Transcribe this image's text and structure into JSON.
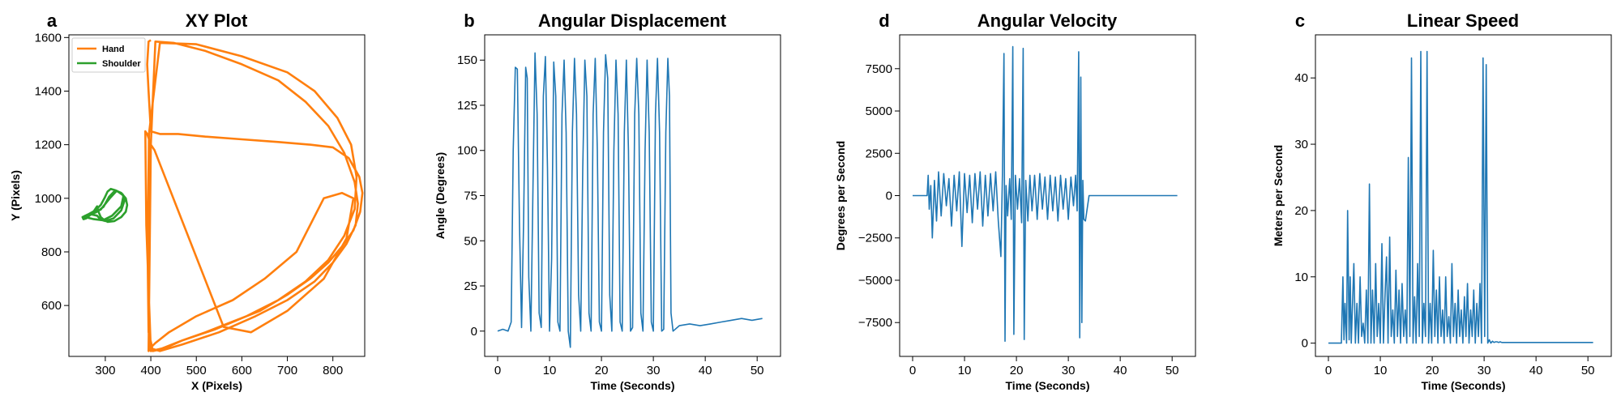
{
  "chart_data": [
    {
      "letter": "a",
      "type": "line",
      "title": "XY Plot",
      "xlabel": "X (Pixels)",
      "ylabel": "Y (Pixels)",
      "xlim": [
        220,
        870
      ],
      "ylim": [
        410,
        1610
      ],
      "xticks": [
        300,
        400,
        500,
        600,
        700,
        800
      ],
      "yticks": [
        600,
        800,
        1000,
        1200,
        1400,
        1600
      ],
      "grid": false,
      "legend": "top-left",
      "series": [
        {
          "name": "Hand",
          "color": "#ff7f0e",
          "x": [
            400,
            395,
            392,
            395,
            400,
            420,
            460,
            520,
            600,
            680,
            750,
            800,
            835,
            858,
            865,
            860,
            845,
            820,
            790,
            750,
            700,
            640,
            580,
            520,
            470,
            430,
            405,
            395,
            393,
            396,
            420,
            500,
            600,
            700,
            760,
            810,
            840,
            852,
            848,
            825,
            790,
            740,
            680,
            610,
            540,
            470,
            425,
            400,
            390,
            388,
            392,
            400,
            408,
            560,
            620,
            700,
            780,
            830,
            845,
            820,
            780,
            720,
            650,
            580,
            500,
            440,
            410,
            398,
            395,
            400,
            410,
            450,
            520,
            600,
            680,
            740,
            790,
            825,
            848,
            855,
            850,
            830,
            800,
            760,
            700,
            630,
            550,
            470,
            420,
            400
          ],
          "y": [
            1590,
            1585,
            1500,
            1400,
            1250,
            1240,
            1240,
            1230,
            1220,
            1210,
            1200,
            1190,
            1150,
            1080,
            1020,
            950,
            880,
            820,
            760,
            700,
            640,
            580,
            540,
            500,
            470,
            440,
            430,
            500,
            800,
            1240,
            1580,
            1575,
            1530,
            1470,
            1400,
            1300,
            1200,
            1080,
            960,
            860,
            770,
            690,
            620,
            560,
            510,
            470,
            440,
            430,
            900,
            1250,
            1240,
            1200,
            1180,
            520,
            500,
            580,
            700,
            850,
            1000,
            1020,
            1000,
            800,
            700,
            620,
            560,
            500,
            460,
            440,
            430,
            1200,
            1585,
            1580,
            1550,
            1500,
            1440,
            1360,
            1270,
            1170,
            1060,
            980,
            900,
            830,
            760,
            690,
            620,
            560,
            500,
            455,
            430,
            440
          ]
        },
        {
          "name": "Shoulder",
          "color": "#2ca02c",
          "x": [
            250,
            262,
            278,
            290,
            298,
            305,
            312,
            322,
            335,
            345,
            348,
            345,
            335,
            320,
            305,
            298,
            290,
            285,
            282,
            278,
            272,
            265,
            258,
            252,
            250,
            262,
            280,
            296,
            308,
            322,
            338,
            342,
            335,
            318,
            300,
            290,
            282,
            270,
            258,
            252,
            256,
            270,
            290,
            310,
            325,
            340,
            335,
            315,
            295,
            275,
            260,
            252
          ],
          "y": [
            930,
            940,
            955,
            975,
            1000,
            1025,
            1035,
            1030,
            1020,
            1000,
            975,
            950,
            930,
            915,
            912,
            918,
            930,
            950,
            970,
            960,
            945,
            935,
            925,
            922,
            930,
            938,
            948,
            968,
            1005,
            1030,
            1015,
            990,
            955,
            925,
            915,
            920,
            935,
            940,
            932,
            928,
            935,
            942,
            958,
            1000,
            1028,
            1010,
            970,
            935,
            918,
            922,
            928,
            932
          ]
        }
      ]
    },
    {
      "letter": "b",
      "type": "line",
      "title": "Angular Displacement",
      "xlabel": "Time (Seconds)",
      "ylabel": "Angle (Degrees)",
      "xlim": [
        -2.5,
        54.5
      ],
      "ylim": [
        -14,
        164
      ],
      "xticks": [
        0,
        10,
        20,
        30,
        40,
        50
      ],
      "yticks": [
        0,
        25,
        50,
        75,
        100,
        125,
        150
      ],
      "grid": false,
      "series": [
        {
          "name": "",
          "color": "#1f77b4",
          "x": [
            0,
            1,
            2,
            2.6,
            3.0,
            3.4,
            3.8,
            4.2,
            4.6,
            5.0,
            5.4,
            5.7,
            6.0,
            6.4,
            6.8,
            7.2,
            7.6,
            8.0,
            8.4,
            8.8,
            9.2,
            9.6,
            10.0,
            10.4,
            10.8,
            11.2,
            11.6,
            12.0,
            12.4,
            12.8,
            13.2,
            13.6,
            14.0,
            14.4,
            14.8,
            15.2,
            15.6,
            16.0,
            16.4,
            16.8,
            17.2,
            17.6,
            18.0,
            18.4,
            18.8,
            19.2,
            19.6,
            20.0,
            20.4,
            20.8,
            21.2,
            21.6,
            22.0,
            22.4,
            22.8,
            23.2,
            23.6,
            24.0,
            24.4,
            24.8,
            25.2,
            25.6,
            26.0,
            26.4,
            26.8,
            27.2,
            27.6,
            28.0,
            28.4,
            28.8,
            29.2,
            29.6,
            30.0,
            30.4,
            30.8,
            31.2,
            31.6,
            32.0,
            32.4,
            32.8,
            33.1,
            33.4,
            33.8,
            35,
            37,
            39,
            41,
            43,
            45,
            47,
            49,
            51
          ],
          "y": [
            0,
            1,
            0,
            5,
            100,
            146,
            145,
            60,
            2,
            60,
            146,
            140,
            30,
            0,
            80,
            154,
            120,
            10,
            2,
            130,
            152,
            90,
            0,
            40,
            149,
            130,
            5,
            0,
            120,
            150,
            110,
            0,
            -9,
            110,
            151,
            120,
            20,
            0,
            90,
            150,
            130,
            10,
            0,
            120,
            151,
            100,
            5,
            0,
            110,
            153,
            140,
            20,
            0,
            100,
            150,
            120,
            5,
            0,
            110,
            150,
            100,
            0,
            2,
            120,
            151,
            120,
            10,
            0,
            100,
            150,
            110,
            5,
            0,
            120,
            151,
            110,
            0,
            1,
            110,
            151,
            130,
            10,
            0,
            3,
            4,
            3,
            4,
            5,
            6,
            7,
            6,
            7
          ]
        }
      ]
    },
    {
      "letter": "d",
      "type": "line",
      "title": "Angular Velocity",
      "xlabel": "Time (Seconds)",
      "ylabel": "Degrees per Second",
      "xlim": [
        -2.5,
        54.5
      ],
      "ylim": [
        -9500,
        9500
      ],
      "xticks": [
        0,
        10,
        20,
        30,
        40,
        50
      ],
      "yticks": [
        -7500,
        -5000,
        -2500,
        0,
        2500,
        5000,
        7500
      ],
      "grid": false,
      "series": [
        {
          "name": "",
          "color": "#1f77b4",
          "x": [
            0,
            2.8,
            3.0,
            3.2,
            3.5,
            3.8,
            4.2,
            4.6,
            5.0,
            5.5,
            6.0,
            6.5,
            7.0,
            7.5,
            8.0,
            8.5,
            9.0,
            9.5,
            10.0,
            10.5,
            11.0,
            11.5,
            12.0,
            12.5,
            13.0,
            13.5,
            14.0,
            14.5,
            15.0,
            15.5,
            16.0,
            16.5,
            17.0,
            17.3,
            17.6,
            17.8,
            18.0,
            18.3,
            18.7,
            19.0,
            19.3,
            19.5,
            19.8,
            20.2,
            20.6,
            21.0,
            21.3,
            21.5,
            21.8,
            22.2,
            22.6,
            23.0,
            23.5,
            24.0,
            24.5,
            25.0,
            25.5,
            26.0,
            26.5,
            27.0,
            27.5,
            28.0,
            28.5,
            29.0,
            29.5,
            30.0,
            30.5,
            31.0,
            31.4,
            31.7,
            32.0,
            32.2,
            32.4,
            32.6,
            32.8,
            33.0,
            33.3,
            34,
            40,
            51
          ],
          "y": [
            0,
            0,
            1200,
            -800,
            600,
            -2500,
            900,
            -1500,
            1400,
            -1200,
            1300,
            -600,
            1000,
            -1800,
            1200,
            -900,
            1400,
            -3000,
            1300,
            -1000,
            1200,
            -1600,
            1300,
            -800,
            1400,
            -1800,
            1200,
            -1200,
            1300,
            -900,
            1400,
            -1500,
            -3600,
            1200,
            8400,
            -8600,
            600,
            -1200,
            1000,
            -1400,
            8800,
            -8200,
            1200,
            -800,
            1000,
            -1600,
            8700,
            -8500,
            900,
            -1500,
            1200,
            -900,
            1200,
            -1400,
            1300,
            -800,
            1100,
            -1400,
            1200,
            -900,
            1100,
            -1500,
            1200,
            -800,
            1000,
            -1400,
            1100,
            -600,
            1200,
            -900,
            8500,
            -8400,
            7000,
            -7500,
            900,
            -1400,
            -1500,
            0,
            0,
            0
          ]
        }
      ]
    },
    {
      "letter": "c",
      "type": "line",
      "title": "Linear Speed",
      "xlabel": "Time (Seconds)",
      "ylabel": "Meters per Second",
      "xlim": [
        -2.5,
        54.5
      ],
      "ylim": [
        -2,
        46.5
      ],
      "xticks": [
        0,
        10,
        20,
        30,
        40,
        50
      ],
      "yticks": [
        0,
        10,
        20,
        30,
        40
      ],
      "grid": false,
      "series": [
        {
          "name": "",
          "color": "#1f77b4",
          "x": [
            0,
            2.5,
            2.8,
            3.0,
            3.2,
            3.5,
            3.7,
            4.0,
            4.2,
            4.4,
            4.6,
            4.9,
            5.2,
            5.5,
            5.8,
            6.1,
            6.4,
            6.7,
            7.0,
            7.3,
            7.6,
            7.9,
            8.2,
            8.5,
            8.8,
            9.1,
            9.4,
            9.7,
            10.0,
            10.3,
            10.6,
            10.9,
            11.2,
            11.5,
            11.8,
            12.1,
            12.4,
            12.7,
            13.0,
            13.3,
            13.6,
            13.9,
            14.2,
            14.5,
            14.8,
            15.1,
            15.4,
            15.7,
            16.0,
            16.3,
            16.6,
            16.9,
            17.2,
            17.5,
            17.8,
            18.1,
            18.4,
            18.7,
            19.0,
            19.3,
            19.6,
            19.9,
            20.2,
            20.5,
            20.8,
            21.1,
            21.4,
            21.7,
            22.0,
            22.3,
            22.6,
            22.9,
            23.2,
            23.5,
            23.8,
            24.1,
            24.4,
            24.7,
            25.0,
            25.3,
            25.6,
            25.9,
            26.2,
            26.5,
            26.8,
            27.1,
            27.4,
            27.7,
            28.0,
            28.3,
            28.6,
            28.9,
            29.2,
            29.5,
            29.8,
            30.1,
            30.4,
            30.7,
            31.0,
            31.3,
            31.6,
            31.9,
            32.2,
            32.5,
            32.8,
            33.1,
            33.4,
            34,
            40,
            51
          ],
          "y": [
            0,
            0,
            10,
            0.5,
            6,
            0,
            20,
            0.5,
            10,
            0,
            5,
            12,
            0,
            6,
            0,
            10,
            1,
            3,
            0,
            8,
            0,
            24,
            0,
            8,
            0,
            12,
            1,
            6,
            0,
            15,
            0,
            7,
            13,
            0,
            16,
            1,
            5,
            0,
            11,
            1,
            8,
            0,
            9,
            1,
            5,
            0,
            28,
            1,
            43,
            0,
            7,
            0,
            12,
            1,
            44,
            0,
            6,
            1,
            44,
            0,
            6,
            0,
            14,
            1,
            8,
            0,
            10,
            1,
            5,
            0,
            10,
            1,
            4,
            0,
            12,
            1,
            6,
            0,
            8,
            1,
            5,
            0,
            7,
            1,
            9,
            0,
            5,
            1,
            8,
            0,
            6,
            1,
            9,
            0,
            43,
            1,
            42,
            0,
            0.5,
            0,
            0.3,
            0.1,
            0.2,
            0.2,
            0.1,
            0.2,
            0.1,
            0.1,
            0.1,
            0.1
          ]
        }
      ]
    }
  ]
}
